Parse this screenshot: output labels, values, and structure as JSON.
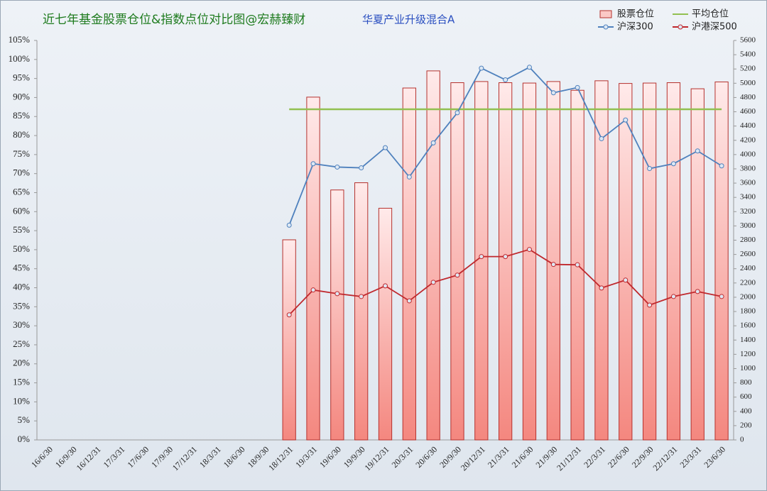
{
  "chart_data": {
    "type": "bar",
    "title": "近七年基金股票仓位&指数点位对比图@宏赫臻财",
    "subtitle": "华夏产业升级混合A",
    "categories": [
      "16/6/30",
      "16/9/30",
      "16/12/31",
      "17/3/31",
      "17/6/30",
      "17/9/30",
      "17/12/31",
      "18/3/31",
      "18/6/30",
      "18/9/30",
      "18/12/31",
      "19/3/31",
      "19/6/30",
      "19/9/30",
      "19/12/31",
      "20/3/31",
      "20/6/30",
      "20/9/30",
      "20/12/31",
      "21/3/31",
      "21/6/30",
      "21/9/30",
      "21/12/31",
      "22/3/31",
      "22/6/30",
      "22/9/30",
      "22/12/31",
      "23/3/31",
      "23/6/30"
    ],
    "series": [
      {
        "name": "股票仓位",
        "type": "bar",
        "axis": "y",
        "color": "#f4877f",
        "values": [
          null,
          null,
          null,
          null,
          null,
          null,
          null,
          null,
          null,
          null,
          52.6,
          90.1,
          65.7,
          67.6,
          60.9,
          92.5,
          97.0,
          93.9,
          94.2,
          93.9,
          93.8,
          94.2,
          91.9,
          94.4,
          93.7,
          93.8,
          93.9,
          92.3,
          94.1
        ]
      },
      {
        "name": "平均仓位",
        "type": "line",
        "axis": "y",
        "color": "#92c050",
        "markers": false,
        "values": [
          null,
          null,
          null,
          null,
          null,
          null,
          null,
          null,
          null,
          null,
          86.9,
          86.9,
          86.9,
          86.9,
          86.9,
          86.9,
          86.9,
          86.9,
          86.9,
          86.9,
          86.9,
          86.9,
          86.9,
          86.9,
          86.9,
          86.9,
          86.9,
          86.9,
          86.9
        ]
      },
      {
        "name": "沪深300",
        "type": "line",
        "axis": "y2",
        "color": "#4f81bd",
        "markers": true,
        "values": [
          null,
          null,
          null,
          null,
          null,
          null,
          null,
          null,
          null,
          null,
          3010,
          3872,
          3825,
          3814,
          4097,
          3686,
          4164,
          4587,
          5211,
          5048,
          5224,
          4866,
          4940,
          4223,
          4485,
          3804,
          3872,
          4051,
          3842
        ]
      },
      {
        "name": "沪港深500",
        "type": "line",
        "axis": "y2",
        "color": "#c0282d",
        "markers": true,
        "values": [
          null,
          null,
          null,
          null,
          null,
          null,
          null,
          null,
          null,
          null,
          1753,
          2102,
          2050,
          2010,
          2160,
          1950,
          2210,
          2310,
          2570,
          2570,
          2670,
          2460,
          2455,
          2130,
          2240,
          1890,
          2010,
          2080,
          2010
        ]
      }
    ],
    "ylim": [
      0,
      105
    ],
    "yticks": [
      {
        "value": 0,
        "label": "0%"
      },
      {
        "value": 5,
        "label": "5%"
      },
      {
        "value": 10,
        "label": "10%"
      },
      {
        "value": 15,
        "label": "15%"
      },
      {
        "value": 20,
        "label": "20%"
      },
      {
        "value": 25,
        "label": "25%"
      },
      {
        "value": 30,
        "label": "30%"
      },
      {
        "value": 35,
        "label": "35%"
      },
      {
        "value": 40,
        "label": "40%"
      },
      {
        "value": 45,
        "label": "45%"
      },
      {
        "value": 50,
        "label": "50%"
      },
      {
        "value": 55,
        "label": "55%"
      },
      {
        "value": 60,
        "label": "60%"
      },
      {
        "value": 65,
        "label": "65%"
      },
      {
        "value": 70,
        "label": "70%"
      },
      {
        "value": 75,
        "label": "75%"
      },
      {
        "value": 80,
        "label": "80%"
      },
      {
        "value": 85,
        "label": "85%"
      },
      {
        "value": 90,
        "label": "90%"
      },
      {
        "value": 95,
        "label": "95%"
      },
      {
        "value": 100,
        "label": "100%"
      },
      {
        "value": 105,
        "label": "105%"
      }
    ],
    "y2lim": [
      0,
      5600
    ],
    "y2ticks": [
      0,
      200,
      400,
      600,
      800,
      1000,
      1200,
      1400,
      1600,
      1800,
      2000,
      2200,
      2400,
      2600,
      2800,
      3000,
      3200,
      3400,
      3600,
      3800,
      4000,
      4200,
      4400,
      4600,
      4800,
      5000,
      5200,
      5400,
      5600
    ],
    "title_color": "#1e7b1e",
    "subtitle_color": "#2a4fc0"
  }
}
